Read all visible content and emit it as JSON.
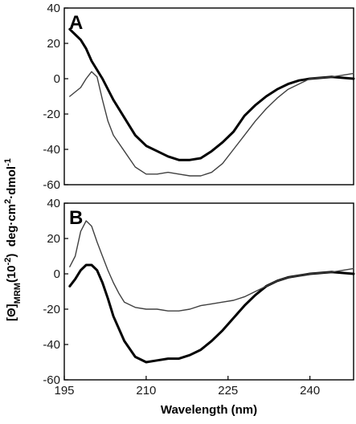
{
  "chart_data": [
    {
      "type": "line",
      "panel_label": "A",
      "xlim": [
        195,
        248
      ],
      "ylim": [
        -60,
        40
      ],
      "y_ticks": [
        40,
        20,
        0,
        -20,
        -40,
        -60
      ],
      "series": [
        {
          "style": "thick",
          "color": "#000000",
          "x": [
            196,
            197,
            198,
            199,
            200,
            202,
            204,
            206,
            208,
            210,
            212,
            214,
            216,
            218,
            220,
            222,
            224,
            226,
            228,
            230,
            232,
            234,
            236,
            238,
            240,
            244,
            248
          ],
          "y": [
            28,
            25,
            22,
            17,
            10,
            0,
            -12,
            -22,
            -32,
            -38,
            -41,
            -44,
            -46,
            -46,
            -45,
            -41,
            -36,
            -30,
            -21,
            -15,
            -10,
            -6,
            -3,
            -1,
            0,
            1,
            0
          ]
        },
        {
          "style": "thin",
          "color": "#404040",
          "x": [
            196,
            198,
            199,
            200,
            201,
            202,
            203,
            204,
            206,
            208,
            210,
            212,
            214,
            216,
            218,
            220,
            222,
            224,
            226,
            228,
            230,
            232,
            234,
            236,
            238,
            240,
            244,
            248
          ],
          "y": [
            -10,
            -5,
            0,
            4,
            1,
            -12,
            -24,
            -32,
            -41,
            -50,
            -54,
            -54,
            -53,
            -54,
            -55,
            -55,
            -53,
            -48,
            -40,
            -32,
            -24,
            -17,
            -11,
            -6,
            -3,
            0,
            1,
            3
          ]
        }
      ]
    },
    {
      "type": "line",
      "panel_label": "B",
      "xlim": [
        195,
        248
      ],
      "ylim": [
        -60,
        40
      ],
      "x_ticks": [
        195,
        210,
        225,
        240
      ],
      "y_ticks": [
        40,
        20,
        0,
        -20,
        -40,
        -60
      ],
      "xlabel": "Wavelength (nm)",
      "series": [
        {
          "style": "thick",
          "color": "#000000",
          "x": [
            196,
            197,
            198,
            199,
            200,
            201,
            202,
            203,
            204,
            206,
            208,
            210,
            212,
            214,
            216,
            218,
            220,
            222,
            224,
            226,
            228,
            230,
            232,
            234,
            236,
            238,
            240,
            244,
            248
          ],
          "y": [
            -7,
            -3,
            2,
            5,
            5,
            2,
            -5,
            -14,
            -24,
            -38,
            -47,
            -50,
            -49,
            -48,
            -48,
            -46,
            -43,
            -38,
            -32,
            -25,
            -18,
            -12,
            -7,
            -4,
            -2,
            -1,
            0,
            1,
            0
          ]
        },
        {
          "style": "thin",
          "color": "#404040",
          "x": [
            196,
            197,
            198,
            199,
            200,
            201,
            202,
            203,
            204,
            205,
            206,
            208,
            210,
            212,
            214,
            216,
            218,
            220,
            222,
            224,
            226,
            228,
            230,
            232,
            234,
            236,
            238,
            240,
            244,
            248
          ],
          "y": [
            4,
            10,
            24,
            30,
            27,
            18,
            10,
            2,
            -5,
            -11,
            -16,
            -19,
            -20,
            -20,
            -21,
            -21,
            -20,
            -18,
            -17,
            -16,
            -15,
            -13,
            -10,
            -7,
            -4,
            -2,
            -1,
            0,
            1,
            3
          ]
        }
      ]
    }
  ],
  "y_axis_title": {
    "main": "[Θ]",
    "subscript": "MRM",
    "factor": "(10",
    "factor_sup": "-2",
    "units_a": ")  deg·cm",
    "units_sup1": "2",
    "units_b": "·dmol",
    "units_sup2": "-1"
  }
}
